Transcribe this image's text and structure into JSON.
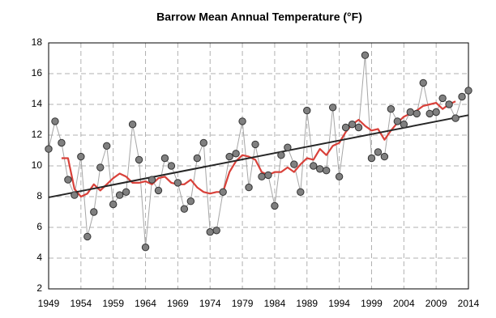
{
  "chart_data": {
    "type": "line",
    "title": "Barrow Mean Annual Temperature (°F)",
    "x": [
      1949,
      1950,
      1951,
      1952,
      1953,
      1954,
      1955,
      1956,
      1957,
      1958,
      1959,
      1960,
      1961,
      1962,
      1963,
      1964,
      1965,
      1966,
      1967,
      1968,
      1969,
      1970,
      1971,
      1972,
      1973,
      1974,
      1975,
      1976,
      1977,
      1978,
      1979,
      1980,
      1981,
      1982,
      1983,
      1984,
      1985,
      1986,
      1987,
      1988,
      1989,
      1990,
      1991,
      1992,
      1993,
      1994,
      1995,
      1996,
      1997,
      1998,
      1999,
      2000,
      2001,
      2002,
      2003,
      2004,
      2005,
      2006,
      2007,
      2008,
      2009,
      2010,
      2011,
      2012,
      2013,
      2014
    ],
    "series": [
      {
        "color": "#a6a6a6",
        "marker_color": "#808080",
        "markers": true,
        "values": [
          11.1,
          12.9,
          11.5,
          9.1,
          8.1,
          10.6,
          5.4,
          7.0,
          9.9,
          11.3,
          7.5,
          8.1,
          8.3,
          12.7,
          10.4,
          4.7,
          9.1,
          8.4,
          10.5,
          10.0,
          8.9,
          7.2,
          7.7,
          10.5,
          11.5,
          5.7,
          5.8,
          8.3,
          10.6,
          10.8,
          12.9,
          8.6,
          11.4,
          9.3,
          9.4,
          7.4,
          10.7,
          11.2,
          10.1,
          8.3,
          13.6,
          10.0,
          9.8,
          9.7,
          13.8,
          9.3,
          12.5,
          12.7,
          12.5,
          17.2,
          10.5,
          10.9,
          10.6,
          13.7,
          12.9,
          12.7,
          13.5,
          13.4,
          15.4,
          13.4,
          13.5,
          14.4,
          14.0,
          13.1,
          14.5,
          14.9
        ]
      },
      {
        "color": "#d9413a",
        "markers": false,
        "values": [
          null,
          null,
          10.5,
          10.5,
          8.5,
          8.0,
          8.2,
          8.8,
          8.4,
          8.8,
          9.2,
          9.5,
          9.3,
          8.9,
          8.9,
          9.0,
          8.8,
          9.2,
          9.3,
          8.9,
          8.8,
          8.8,
          9.1,
          8.6,
          8.3,
          8.2,
          8.3,
          8.3,
          9.6,
          10.3,
          10.7,
          10.6,
          10.4,
          9.6,
          9.4,
          9.6,
          9.6,
          9.9,
          9.6,
          10.1,
          10.5,
          10.4,
          11.1,
          10.7,
          11.3,
          11.5,
          12.2,
          12.7,
          13.0,
          12.6,
          12.3,
          12.4,
          11.7,
          12.3,
          12.8,
          13.2,
          13.4,
          13.6,
          13.9,
          14.0,
          14.1,
          13.7,
          14.0,
          14.2,
          null,
          null
        ]
      }
    ],
    "trend": {
      "color": "#262626",
      "x": [
        1949,
        2014
      ],
      "values": [
        7.95,
        13.3
      ]
    },
    "xlim": [
      1949,
      2014
    ],
    "xticks": [
      1949,
      1954,
      1959,
      1964,
      1969,
      1974,
      1979,
      1984,
      1989,
      1994,
      1999,
      2004,
      2009,
      2014
    ],
    "ylim": [
      2,
      18
    ],
    "yticks": [
      2,
      4,
      6,
      8,
      10,
      12,
      14,
      16,
      18
    ],
    "grid": true
  }
}
